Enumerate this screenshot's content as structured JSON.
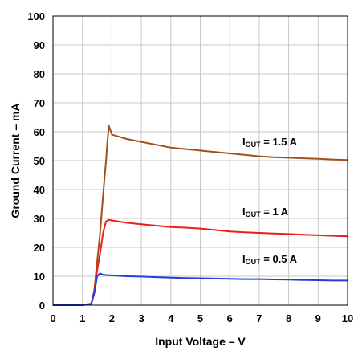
{
  "chart_data": {
    "type": "line",
    "xlabel": "Input Voltage – V",
    "ylabel": "Ground Current – mA",
    "xlim": [
      0,
      10
    ],
    "ylim": [
      0,
      100
    ],
    "xticks": [
      "0",
      "1",
      "2",
      "3",
      "4",
      "5",
      "6",
      "7",
      "8",
      "9",
      "10"
    ],
    "yticks": [
      "0",
      "10",
      "20",
      "30",
      "40",
      "50",
      "60",
      "70",
      "80",
      "90",
      "100"
    ],
    "grid": true,
    "series": [
      {
        "name": "IOUT = 1.5 A",
        "label_main": "I",
        "label_sub": "OUT",
        "label_rest": " = 1.5 A",
        "color": "#a0501e",
        "x": [
          0,
          1.0,
          1.3,
          1.4,
          1.5,
          1.6,
          1.7,
          1.8,
          1.85,
          1.9,
          2.0,
          2.5,
          3.0,
          3.5,
          4.0,
          4.5,
          5.0,
          5.5,
          6.0,
          6.5,
          7.0,
          7.5,
          8.0,
          8.5,
          9.0,
          9.5,
          10.0
        ],
        "y": [
          0,
          0,
          0.5,
          5,
          15,
          25,
          38,
          50,
          57,
          62,
          59,
          57.5,
          56.5,
          55.5,
          54.5,
          54,
          53.5,
          53,
          52.5,
          52,
          51.5,
          51.2,
          51,
          50.8,
          50.6,
          50.4,
          50.2
        ]
      },
      {
        "name": "IOUT = 1 A",
        "label_main": "I",
        "label_sub": "OUT",
        "label_rest": " = 1 A",
        "color": "#ee1c1c",
        "x": [
          0,
          1.0,
          1.3,
          1.4,
          1.5,
          1.6,
          1.7,
          1.8,
          1.9,
          2.0,
          2.5,
          3.0,
          3.5,
          4.0,
          4.5,
          5.0,
          5.5,
          6.0,
          6.5,
          7.0,
          7.5,
          8.0,
          8.5,
          9.0,
          9.5,
          10.0
        ],
        "y": [
          0,
          0,
          0.5,
          5,
          12,
          18,
          25,
          29,
          29.5,
          29.3,
          28.5,
          28,
          27.5,
          27,
          26.8,
          26.5,
          26,
          25.5,
          25.2,
          25,
          24.8,
          24.6,
          24.4,
          24.2,
          24,
          23.8
        ]
      },
      {
        "name": "IOUT = 0.5 A",
        "label_main": "I",
        "label_sub": "OUT",
        "label_rest": " = 0.5 A",
        "color": "#1f3fe0",
        "x": [
          0,
          1.0,
          1.3,
          1.4,
          1.5,
          1.6,
          1.7,
          2.0,
          2.5,
          3.0,
          3.5,
          4.0,
          4.5,
          5.0,
          5.5,
          6.0,
          6.5,
          7.0,
          7.5,
          8.0,
          8.5,
          9.0,
          9.5,
          10.0
        ],
        "y": [
          0,
          0,
          0.5,
          4,
          10,
          11,
          10.5,
          10.3,
          10,
          9.9,
          9.7,
          9.5,
          9.4,
          9.3,
          9.2,
          9.1,
          9.0,
          9.0,
          8.9,
          8.8,
          8.7,
          8.6,
          8.5,
          8.5
        ]
      }
    ]
  }
}
